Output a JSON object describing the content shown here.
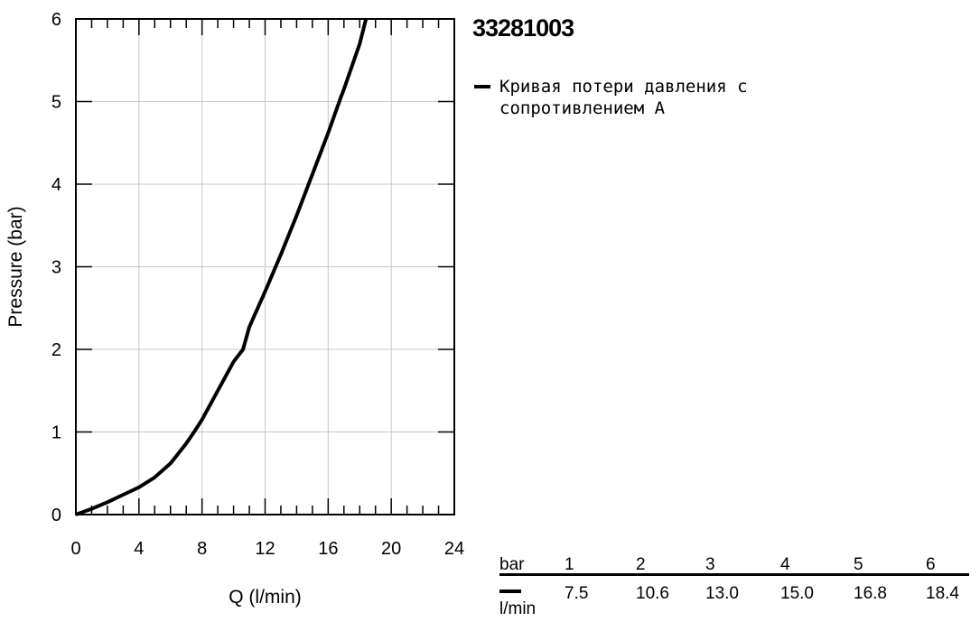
{
  "model": "33281003",
  "legend": {
    "swatch_color": "#000000",
    "label": "Кривая потери давления с сопротивлением A"
  },
  "chart_data": {
    "type": "line",
    "xlabel": "Q (l/min)",
    "ylabel": "Pressure (bar)",
    "xlim": [
      0,
      24
    ],
    "ylim": [
      0,
      6
    ],
    "x_ticks": [
      "0",
      "4",
      "8",
      "12",
      "16",
      "20",
      "24"
    ],
    "y_ticks": [
      "0",
      "1",
      "2",
      "3",
      "4",
      "5",
      "6"
    ],
    "grid": true,
    "series": [
      {
        "name": "Кривая потери давления с сопротивлением A",
        "color": "#000000",
        "x": [
          0,
          1,
          2,
          3,
          4,
          5,
          6,
          7,
          7.5,
          8,
          9,
          10,
          10.6,
          11,
          12,
          13,
          14,
          15,
          16,
          16.8,
          17,
          18,
          18.4
        ],
        "y": [
          0,
          0.07,
          0.15,
          0.24,
          0.33,
          0.45,
          0.62,
          0.86,
          1.0,
          1.15,
          1.5,
          1.85,
          2.0,
          2.27,
          2.7,
          3.15,
          3.62,
          4.12,
          4.62,
          5.05,
          5.15,
          5.7,
          6.0
        ]
      }
    ]
  },
  "table": {
    "unit_top": "bar",
    "unit_bottom": "l/min",
    "pressure": [
      "1",
      "2",
      "3",
      "4",
      "5",
      "6"
    ],
    "flow": [
      "7.5",
      "10.6",
      "13.0",
      "15.0",
      "16.8",
      "18.4"
    ]
  }
}
